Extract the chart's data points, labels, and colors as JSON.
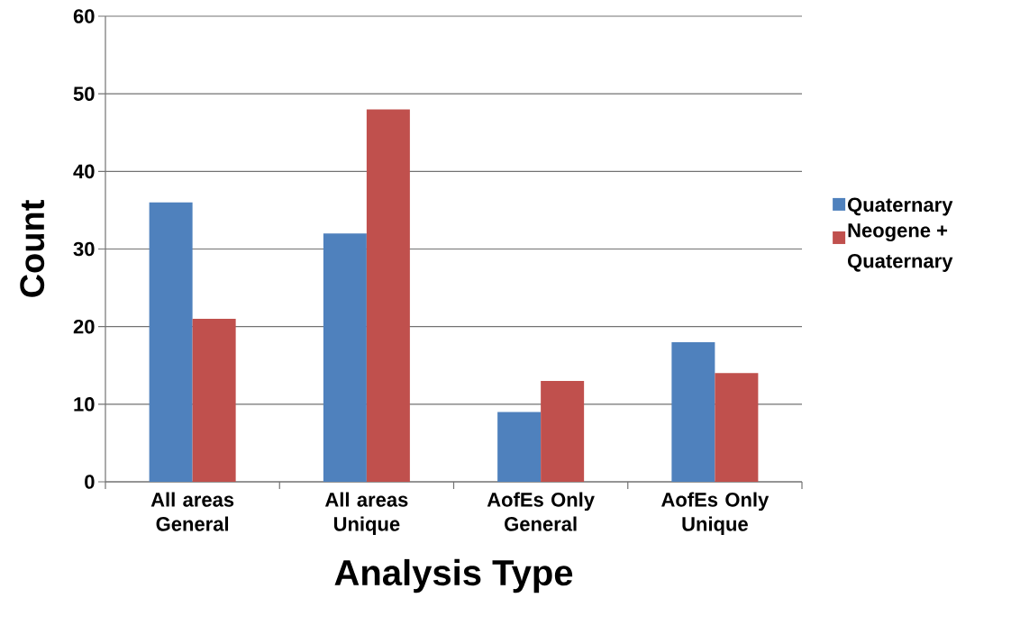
{
  "chart_data": {
    "type": "bar",
    "xlabel": "Analysis Type",
    "ylabel": "Count",
    "categories": [
      "All areas General",
      "All areas Unique",
      "AofEs Only General",
      "AofEs Only Unique"
    ],
    "series": [
      {
        "name": "Quaternary",
        "color": "#4f81bd",
        "values": [
          36,
          32,
          9,
          18
        ]
      },
      {
        "name": "Neogene + Quaternary",
        "color": "#c0504d",
        "values": [
          21,
          48,
          13,
          14
        ]
      }
    ],
    "ylim": [
      0,
      60
    ],
    "yticks": [
      0,
      10,
      20,
      30,
      40,
      50,
      60
    ],
    "grid": "y",
    "legend": "right"
  }
}
